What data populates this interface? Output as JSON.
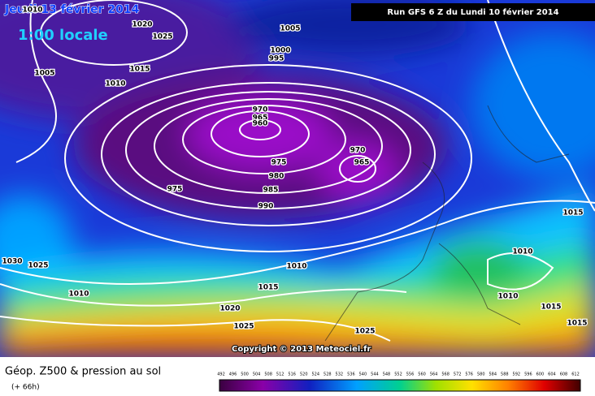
{
  "header": {
    "date": "Jeudi 13 février 2014",
    "time": "1:00 locale",
    "run": "Run GFS 6 Z du Lundi 10 février 2014"
  },
  "copyright": "Copyright © 2013 Meteociel.fr",
  "legend": {
    "title": "Géop. Z500 & pression au sol",
    "lead": "(+ 66h)",
    "scale": [
      492,
      496,
      500,
      504,
      508,
      512,
      516,
      520,
      524,
      528,
      532,
      536,
      540,
      544,
      548,
      552,
      556,
      560,
      564,
      568,
      572,
      576,
      580,
      584,
      588,
      592,
      596,
      600,
      604,
      608,
      612
    ]
  },
  "isobar_labels": [
    "1010",
    "1020",
    "1025",
    "1005",
    "1000",
    "995",
    "1015",
    "1005",
    "1010",
    "970",
    "965",
    "960",
    "970",
    "965",
    "975",
    "980",
    "975",
    "985",
    "990",
    "1015",
    "1030",
    "1025",
    "1010",
    "1010",
    "1010",
    "1015",
    "1010",
    "1015",
    "1020",
    "1015",
    "1025",
    "1025"
  ]
}
